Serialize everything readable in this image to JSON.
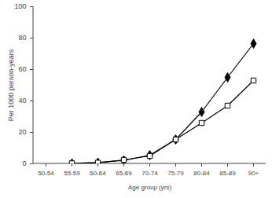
{
  "chart_data": {
    "type": "line",
    "x_label": "Age group (yrs)",
    "y_label": "Per 1000 person-years",
    "categories": [
      "50-54",
      "55-59",
      "60-64",
      "65-69",
      "70-74",
      "75-79",
      "80-84",
      "85-89",
      "90+"
    ],
    "series": [
      {
        "color": "#000000",
        "marker": "diamond",
        "values": [
          null,
          0.3,
          0.8,
          2.2,
          5.5,
          15.5,
          33,
          55,
          76.5
        ]
      },
      {
        "color": "#000000",
        "marker": "open-square",
        "values": [
          null,
          0.3,
          0.7,
          2.5,
          5,
          15.5,
          26,
          37,
          53
        ]
      }
    ],
    "ylim": [
      0,
      100
    ],
    "yticks": [
      0,
      20,
      40,
      60,
      80,
      100
    ],
    "grid": false
  }
}
